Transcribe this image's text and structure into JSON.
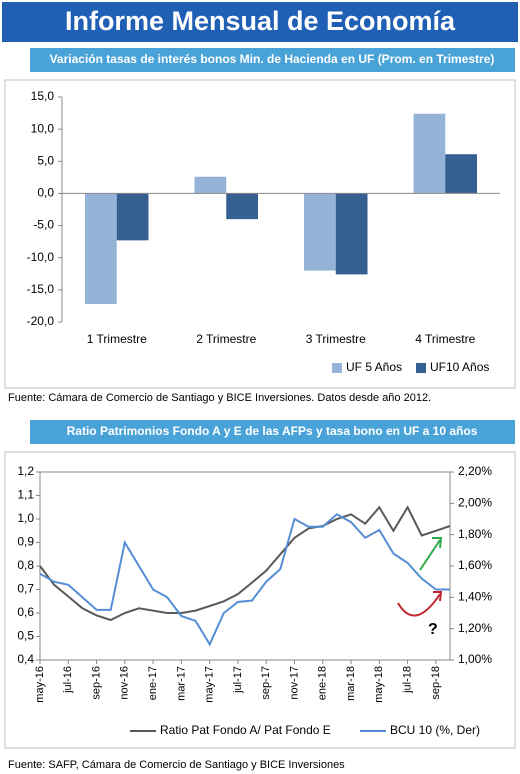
{
  "header": {
    "title": "Informe Mensual de Economía"
  },
  "chart_data": [
    {
      "type": "bar",
      "title": "Variación tasas de interés bonos Min. de Hacienda en UF (Prom. en Trimestre)",
      "categories": [
        "1 Trimestre",
        "2 Trimestre",
        "3 Trimestre",
        "4 Trimestre"
      ],
      "series": [
        {
          "name": "UF 5 Años",
          "color": "#95b3d7",
          "values": [
            -17.2,
            2.6,
            -12.0,
            12.4
          ]
        },
        {
          "name": "UF10 Años",
          "color": "#366092",
          "values": [
            -7.3,
            -4.0,
            -12.6,
            6.1
          ]
        }
      ],
      "ylim": [
        -20,
        15
      ],
      "yticks": [
        {
          "value": -20,
          "label": "-20,0"
        },
        {
          "value": -15,
          "label": "-15,0"
        },
        {
          "value": -10,
          "label": "-10,0"
        },
        {
          "value": -5,
          "label": "-5,0"
        },
        {
          "value": 0,
          "label": "0,0"
        },
        {
          "value": 5,
          "label": "5,0"
        },
        {
          "value": 10,
          "label": "10,0"
        },
        {
          "value": 15,
          "label": "15,0"
        }
      ],
      "grid": false,
      "legend": "bottom-right",
      "source": "Fuente:   Cámara de Comercio de Santiago y BICE Inversiones. Datos desde año 2012."
    },
    {
      "type": "line",
      "title": "Ratio Patrimonios Fondo A y E de las AFPs y tasa bono en UF a 10 años",
      "categories": [
        "may-16",
        null,
        "jul-16",
        null,
        "sep-16",
        null,
        "nov-16",
        null,
        "ene-17",
        null,
        "mar-17",
        null,
        "may-17",
        null,
        "jul-17",
        null,
        "sep-17",
        null,
        "nov-17",
        null,
        "ene-18",
        null,
        "mar-18",
        null,
        "may-18",
        null,
        "jul-18",
        null,
        "sep-18",
        null
      ],
      "series": [
        {
          "name": "Ratio Pat Fondo A/ Pat Fondo E",
          "color": "#595959",
          "values": [
            0.8,
            0.72,
            0.67,
            0.62,
            0.59,
            0.57,
            0.6,
            0.62,
            0.61,
            0.6,
            0.6,
            0.61,
            0.63,
            0.65,
            0.68,
            0.73,
            0.78,
            0.85,
            0.92,
            0.96,
            0.97,
            1.0,
            1.02,
            0.98,
            1.05,
            0.95,
            1.05,
            0.93,
            0.95,
            0.97
          ]
        },
        {
          "name": "BCU 10 (%, Der)",
          "color": "#558ed5",
          "axis": "y2",
          "values": [
            1.55,
            1.5,
            1.48,
            1.4,
            1.32,
            1.32,
            1.75,
            1.6,
            1.45,
            1.4,
            1.28,
            1.25,
            1.1,
            1.3,
            1.37,
            1.38,
            1.5,
            1.58,
            1.9,
            1.85,
            1.85,
            1.93,
            1.88,
            1.78,
            1.83,
            1.68,
            1.62,
            1.52,
            1.45,
            1.45
          ]
        }
      ],
      "ylim": [
        0.4,
        1.2
      ],
      "yticks": [
        {
          "value": 0.4,
          "label": "0,4"
        },
        {
          "value": 0.5,
          "label": "0,5"
        },
        {
          "value": 0.6,
          "label": "0,6"
        },
        {
          "value": 0.7,
          "label": "0,7"
        },
        {
          "value": 0.8,
          "label": "0,8"
        },
        {
          "value": 0.9,
          "label": "0,9"
        },
        {
          "value": 1.0,
          "label": "1,0"
        },
        {
          "value": 1.1,
          "label": "1,1"
        },
        {
          "value": 1.2,
          "label": "1,2"
        }
      ],
      "y2lim": [
        1.0,
        2.2
      ],
      "y2ticks": [
        {
          "value": 1.0,
          "label": "1,00%"
        },
        {
          "value": 1.2,
          "label": "1,20%"
        },
        {
          "value": 1.4,
          "label": "1,40%"
        },
        {
          "value": 1.6,
          "label": "1,60%"
        },
        {
          "value": 1.8,
          "label": "1,80%"
        },
        {
          "value": 2.0,
          "label": "2,00%"
        },
        {
          "value": 2.2,
          "label": "2,20%"
        }
      ],
      "grid": false,
      "legend": "bottom",
      "annotations": [
        "?"
      ],
      "source": "Fuente: SAFP, Cámara de Comercio de Santiago y BICE Inversiones"
    }
  ]
}
